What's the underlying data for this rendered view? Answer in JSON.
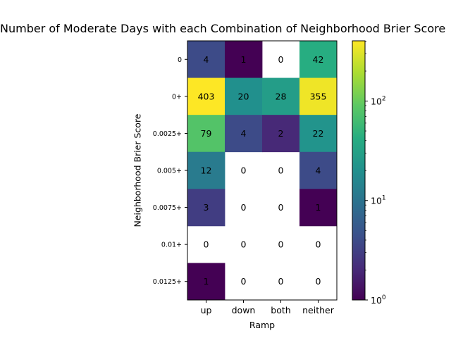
{
  "chart_data": {
    "type": "heatmap",
    "title": "Number of Moderate Days with each Combination of Neighborhood Brier Score",
    "xlabel": "Ramp",
    "ylabel": "Neighborhood Brier Score",
    "x_categories": [
      "up",
      "down",
      "both",
      "neither"
    ],
    "y_categories": [
      "0",
      "0+",
      "0.0025+",
      "0.005+",
      "0.0075+",
      "0.01+",
      "0.0125+"
    ],
    "values": [
      [
        4,
        1,
        0,
        42
      ],
      [
        403,
        20,
        28,
        355
      ],
      [
        79,
        4,
        2,
        22
      ],
      [
        12,
        0,
        0,
        4
      ],
      [
        3,
        0,
        0,
        1
      ],
      [
        0,
        0,
        0,
        0
      ],
      [
        1,
        0,
        0,
        0
      ]
    ],
    "colorbar": {
      "scale": "log",
      "range": [
        1,
        403
      ],
      "colormap": "viridis",
      "tick_labels": [
        "10^0",
        "10^1",
        "10^2"
      ],
      "zero_cells": "blank (white)"
    }
  }
}
